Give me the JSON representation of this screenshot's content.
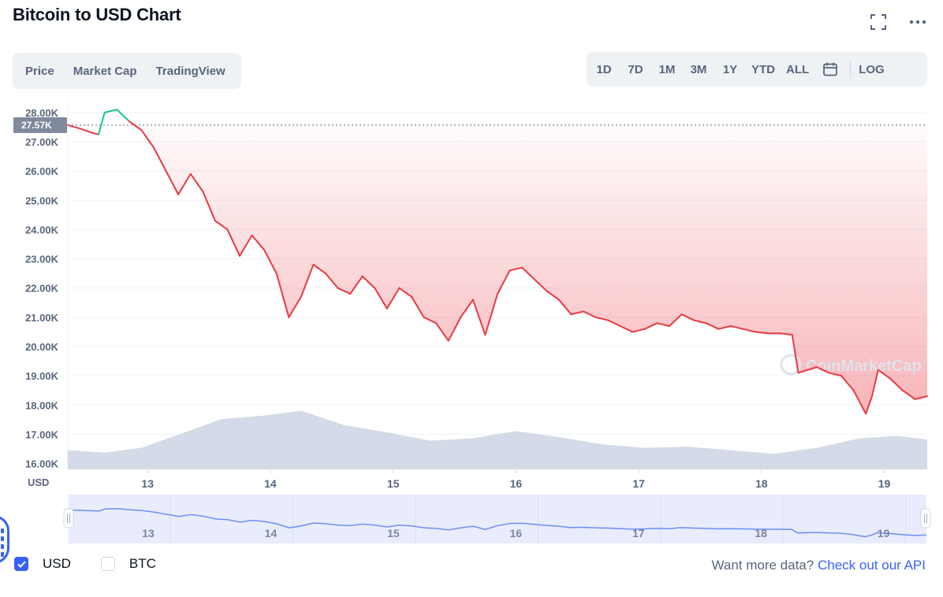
{
  "title": "Bitcoin to USD Chart",
  "view_tabs": [
    {
      "label": "Price",
      "active": true
    },
    {
      "label": "Market Cap",
      "active": false
    },
    {
      "label": "TradingView",
      "active": false
    }
  ],
  "range_tabs": [
    {
      "label": "1D",
      "active": false
    },
    {
      "label": "7D",
      "active": true
    },
    {
      "label": "1M",
      "active": false
    },
    {
      "label": "3M",
      "active": false
    },
    {
      "label": "1Y",
      "active": false
    },
    {
      "label": "YTD",
      "active": false
    },
    {
      "label": "ALL",
      "active": false
    }
  ],
  "log_label": "LOG",
  "watermark": "CoinMarketCap",
  "currency_options": [
    {
      "label": "USD",
      "checked": true
    },
    {
      "label": "BTC",
      "checked": false
    }
  ],
  "api_promo": {
    "text": "Want more data?",
    "link": "Check out our API"
  },
  "colors": {
    "up": "#16c784",
    "down": "#ea3943",
    "accent": "#3861fb",
    "volume": "#cfd6e4"
  },
  "chart_data": {
    "type": "line",
    "ylabel": "USD",
    "ylim": [
      15800,
      28400
    ],
    "xlim": [
      12.35,
      19.35
    ],
    "reference_price": 27570,
    "current_price_label": "27.57K",
    "y_ticks": [
      {
        "v": 16000,
        "label": "16.00K"
      },
      {
        "v": 17000,
        "label": "17.00K"
      },
      {
        "v": 18000,
        "label": "18.00K"
      },
      {
        "v": 19000,
        "label": "19.00K"
      },
      {
        "v": 20000,
        "label": "20.00K"
      },
      {
        "v": 21000,
        "label": "21.00K"
      },
      {
        "v": 22000,
        "label": "22.00K"
      },
      {
        "v": 23000,
        "label": "23.00K"
      },
      {
        "v": 24000,
        "label": "24.00K"
      },
      {
        "v": 25000,
        "label": "25.00K"
      },
      {
        "v": 26000,
        "label": "26.00K"
      },
      {
        "v": 27000,
        "label": "27.00K"
      },
      {
        "v": 28000,
        "label": "28.00K"
      }
    ],
    "x_ticks": [
      {
        "v": 13,
        "label": "13"
      },
      {
        "v": 14,
        "label": "14"
      },
      {
        "v": 15,
        "label": "15"
      },
      {
        "v": 16,
        "label": "16"
      },
      {
        "v": 17,
        "label": "17"
      },
      {
        "v": 18,
        "label": "18"
      },
      {
        "v": 19,
        "label": "19"
      }
    ],
    "grid": true,
    "series": [
      {
        "values": [
          [
            12.35,
            27570
          ],
          [
            12.45,
            27450
          ],
          [
            12.55,
            27300
          ],
          [
            12.6,
            27250
          ],
          [
            12.65,
            28000
          ],
          [
            12.75,
            28100
          ],
          [
            12.85,
            27700
          ],
          [
            12.95,
            27400
          ],
          [
            13.05,
            26800
          ],
          [
            13.15,
            26000
          ],
          [
            13.25,
            25200
          ],
          [
            13.35,
            25900
          ],
          [
            13.45,
            25300
          ],
          [
            13.55,
            24300
          ],
          [
            13.65,
            24000
          ],
          [
            13.75,
            23100
          ],
          [
            13.85,
            23800
          ],
          [
            13.95,
            23300
          ],
          [
            14.05,
            22500
          ],
          [
            14.15,
            21000
          ],
          [
            14.25,
            21700
          ],
          [
            14.35,
            22800
          ],
          [
            14.45,
            22500
          ],
          [
            14.55,
            22000
          ],
          [
            14.65,
            21800
          ],
          [
            14.75,
            22400
          ],
          [
            14.85,
            22000
          ],
          [
            14.95,
            21300
          ],
          [
            15.05,
            22000
          ],
          [
            15.15,
            21700
          ],
          [
            15.25,
            21000
          ],
          [
            15.35,
            20800
          ],
          [
            15.45,
            20200
          ],
          [
            15.55,
            21000
          ],
          [
            15.65,
            21600
          ],
          [
            15.75,
            20400
          ],
          [
            15.85,
            21800
          ],
          [
            15.95,
            22600
          ],
          [
            16.05,
            22700
          ],
          [
            16.15,
            22300
          ],
          [
            16.25,
            21900
          ],
          [
            16.35,
            21600
          ],
          [
            16.45,
            21100
          ],
          [
            16.55,
            21200
          ],
          [
            16.65,
            21000
          ],
          [
            16.75,
            20900
          ],
          [
            16.85,
            20700
          ],
          [
            16.95,
            20500
          ],
          [
            17.05,
            20600
          ],
          [
            17.15,
            20800
          ],
          [
            17.25,
            20700
          ],
          [
            17.35,
            21100
          ],
          [
            17.45,
            20900
          ],
          [
            17.55,
            20800
          ],
          [
            17.65,
            20600
          ],
          [
            17.75,
            20700
          ],
          [
            17.85,
            20600
          ],
          [
            17.95,
            20500
          ],
          [
            18.05,
            20450
          ],
          [
            18.15,
            20450
          ],
          [
            18.25,
            20400
          ],
          [
            18.3,
            19100
          ],
          [
            18.45,
            19300
          ],
          [
            18.55,
            19100
          ],
          [
            18.65,
            19000
          ],
          [
            18.75,
            18500
          ],
          [
            18.85,
            17700
          ],
          [
            18.9,
            18300
          ],
          [
            18.95,
            19200
          ],
          [
            19.05,
            18900
          ],
          [
            19.15,
            18500
          ],
          [
            19.25,
            18200
          ],
          [
            19.35,
            18300
          ]
        ]
      }
    ],
    "volume": [
      {
        "x": 12.35,
        "v": 0.32
      },
      {
        "x": 12.65,
        "v": 0.28
      },
      {
        "x": 12.95,
        "v": 0.36
      },
      {
        "x": 13.25,
        "v": 0.58
      },
      {
        "x": 13.6,
        "v": 0.84
      },
      {
        "x": 13.95,
        "v": 0.9
      },
      {
        "x": 14.25,
        "v": 0.98
      },
      {
        "x": 14.6,
        "v": 0.74
      },
      {
        "x": 14.95,
        "v": 0.62
      },
      {
        "x": 15.3,
        "v": 0.48
      },
      {
        "x": 15.65,
        "v": 0.52
      },
      {
        "x": 16.0,
        "v": 0.64
      },
      {
        "x": 16.35,
        "v": 0.54
      },
      {
        "x": 16.7,
        "v": 0.42
      },
      {
        "x": 17.05,
        "v": 0.36
      },
      {
        "x": 17.4,
        "v": 0.38
      },
      {
        "x": 17.75,
        "v": 0.32
      },
      {
        "x": 18.1,
        "v": 0.26
      },
      {
        "x": 18.45,
        "v": 0.36
      },
      {
        "x": 18.8,
        "v": 0.52
      },
      {
        "x": 19.1,
        "v": 0.56
      },
      {
        "x": 19.35,
        "v": 0.5
      }
    ]
  }
}
